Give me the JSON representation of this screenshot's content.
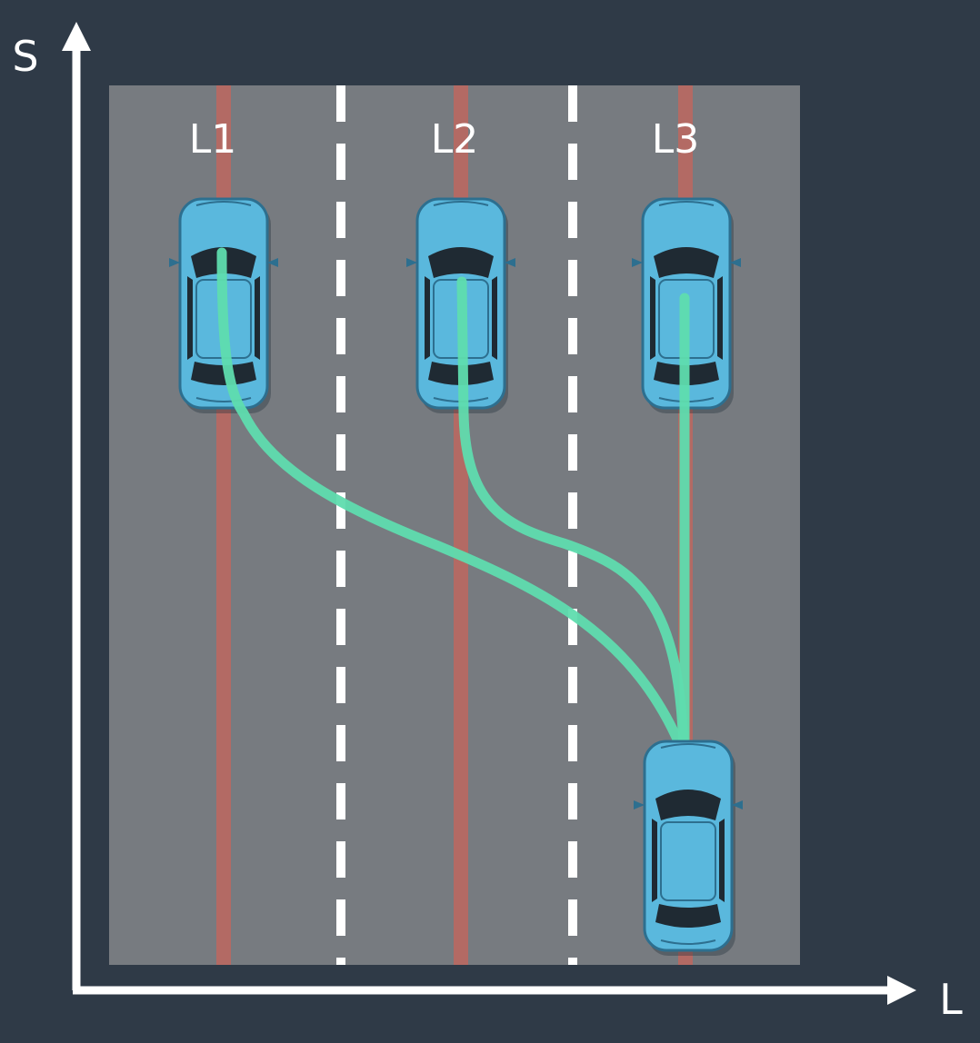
{
  "axes": {
    "vertical_label": "S",
    "horizontal_label": "L"
  },
  "lanes": [
    {
      "label": "L1"
    },
    {
      "label": "L2"
    },
    {
      "label": "L3"
    }
  ],
  "colors": {
    "background": "#2f3a47",
    "road": "#777b80",
    "lane_center_line": "#b36a64",
    "lane_divider": "#ffffff",
    "trajectory": "#5fdcae",
    "car_body": "#5ab8dd",
    "car_glass": "#1f2a33",
    "axis": "#ffffff"
  },
  "cars": [
    {
      "role": "target",
      "lane": "L1"
    },
    {
      "role": "target",
      "lane": "L2"
    },
    {
      "role": "target",
      "lane": "L3"
    },
    {
      "role": "ego",
      "lane": "L3"
    }
  ]
}
